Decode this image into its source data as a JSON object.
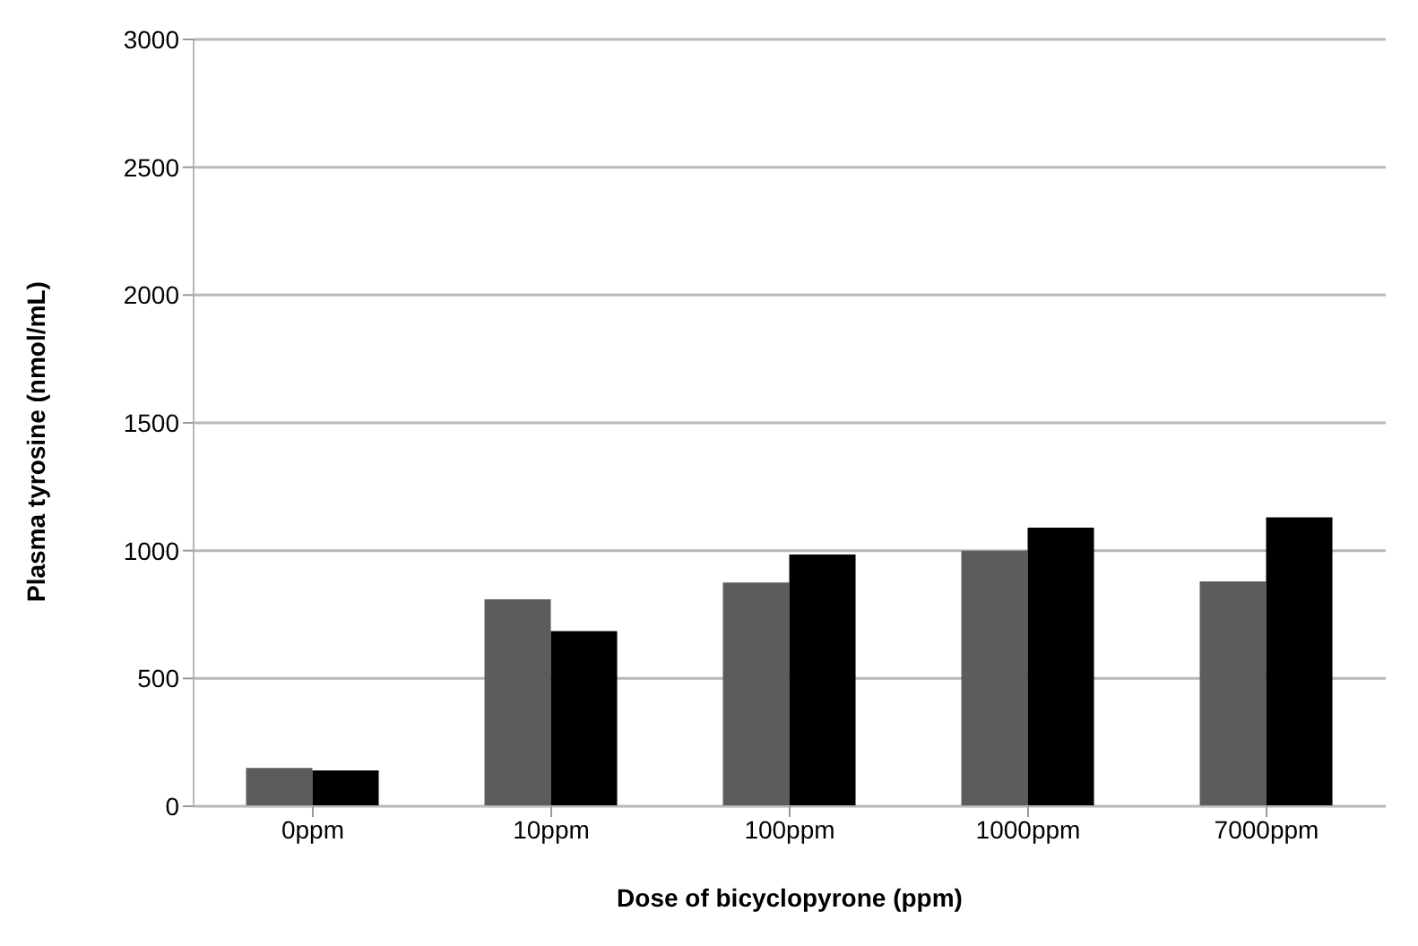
{
  "chart_data": {
    "type": "bar",
    "xlabel": "Dose of bicyclopyrone (ppm)",
    "ylabel": "Plasma tyrosine (nmol/mL)",
    "categories": [
      "0ppm",
      "10ppm",
      "100ppm",
      "1000ppm",
      "7000ppm"
    ],
    "series": [
      {
        "color": "#5c5c5c",
        "values": [
          150,
          810,
          875,
          1000,
          880
        ]
      },
      {
        "color": "#000000",
        "values": [
          140,
          685,
          985,
          1090,
          1130
        ]
      }
    ],
    "ylim": [
      0,
      3000
    ],
    "yticks": [
      0,
      500,
      1000,
      1500,
      2000,
      2500,
      3000
    ],
    "grid": "y"
  }
}
